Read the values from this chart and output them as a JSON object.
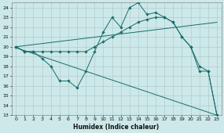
{
  "xlabel": "Humidex (Indice chaleur)",
  "xlim": [
    -0.5,
    23.5
  ],
  "ylim": [
    13,
    24.5
  ],
  "yticks": [
    13,
    14,
    15,
    16,
    17,
    18,
    19,
    20,
    21,
    22,
    23,
    24
  ],
  "xticks": [
    0,
    1,
    2,
    3,
    4,
    5,
    6,
    7,
    8,
    9,
    10,
    11,
    12,
    13,
    14,
    15,
    16,
    17,
    18,
    19,
    20,
    21,
    22,
    23
  ],
  "bg_color": "#cce8e8",
  "grid_color": "#b0cccc",
  "line_color": "#1a6b6b",
  "line1_x": [
    0,
    1,
    2,
    3,
    4,
    5,
    6,
    7,
    8,
    9,
    10,
    11,
    12,
    13,
    14,
    15,
    16,
    17,
    18,
    19,
    20,
    21,
    22,
    23
  ],
  "line1_y": [
    20,
    19.5,
    19.5,
    18.8,
    18,
    16.5,
    16.5,
    15.8,
    17.5,
    19.5,
    21.5,
    23,
    22,
    24,
    24.5,
    23.3,
    23.5,
    23,
    22.5,
    21,
    20,
    18,
    17.5,
    13
  ],
  "line2_x": [
    0,
    1,
    2,
    3,
    4,
    5,
    6,
    7,
    8,
    9,
    10,
    11,
    12,
    13,
    14,
    15,
    16,
    17,
    18,
    19,
    20,
    21,
    22,
    23
  ],
  "line2_y": [
    20,
    19.5,
    19.5,
    19.5,
    19.5,
    19.5,
    19.5,
    19.5,
    19.5,
    20,
    20.5,
    21,
    21.5,
    22,
    22.5,
    22.8,
    23,
    23,
    22.5,
    21,
    20,
    17.5,
    17.5,
    13
  ],
  "line3_x": [
    0,
    23
  ],
  "line3_y": [
    20,
    22.5
  ],
  "line4_x": [
    0,
    23
  ],
  "line4_y": [
    19.9,
    13
  ]
}
